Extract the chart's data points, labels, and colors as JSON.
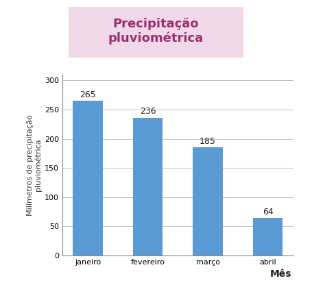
{
  "categories": [
    "janeiro",
    "fevereiro",
    "março",
    "abril"
  ],
  "values": [
    265,
    236,
    185,
    64
  ],
  "bar_color": "#5b9bd5",
  "title": "Precipitação\npluviométrica",
  "title_color": "#9b2f6e",
  "title_bg_color": "#f0d8e8",
  "xlabel": "Mês",
  "ylabel": "Milímetros de precipitação\npluviométrica",
  "ylim": [
    0,
    310
  ],
  "yticks": [
    0,
    50,
    100,
    150,
    200,
    250,
    300
  ],
  "figure_bg_color": "#ffffff",
  "outer_border_color": "#a0206a",
  "value_labels_fontsize": 9,
  "axis_label_fontsize": 8,
  "tick_label_fontsize": 8,
  "xlabel_fontsize": 10,
  "title_fontsize": 13
}
